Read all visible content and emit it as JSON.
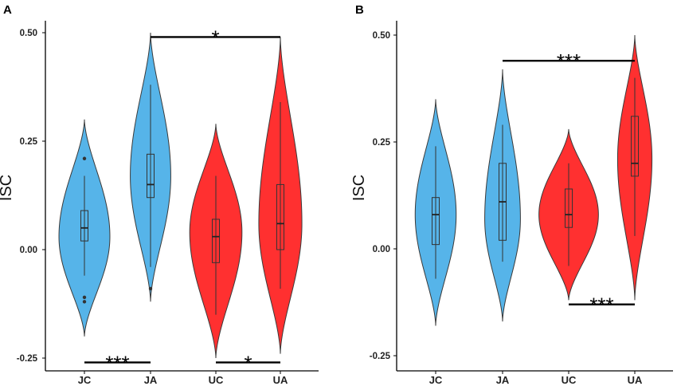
{
  "colors": {
    "JC": "#56b4e9",
    "JA": "#56b4e9",
    "UC": "#ff3030",
    "UA": "#ff3030",
    "outline": "#3a3a3a",
    "bracket": "#000000"
  },
  "chart_data": [
    {
      "type": "violin",
      "panel_label": "A",
      "ylabel": "ISC",
      "categories": [
        "JC",
        "JA",
        "UC",
        "UA"
      ],
      "yticks": [
        -0.25,
        0.0,
        0.25,
        0.5
      ],
      "ytick_labels": [
        "-0.25",
        "0.00",
        "0.25",
        "0.50"
      ],
      "ylim": [
        -0.28,
        0.54
      ],
      "violins": [
        {
          "category": "JC",
          "min": -0.2,
          "max": 0.3,
          "mode": 0.03,
          "max_width": 0.78,
          "q1": 0.02,
          "median": 0.05,
          "q3": 0.09,
          "whisker_low": -0.06,
          "whisker_high": 0.17,
          "outliers": [
            0.21,
            -0.11,
            -0.12
          ]
        },
        {
          "category": "JA",
          "min": -0.12,
          "max": 0.5,
          "mode": 0.17,
          "max_width": 0.62,
          "q1": 0.12,
          "median": 0.15,
          "q3": 0.22,
          "whisker_low": -0.04,
          "whisker_high": 0.38,
          "outliers": [
            -0.09
          ]
        },
        {
          "category": "UC",
          "min": -0.25,
          "max": 0.29,
          "mode": 0.04,
          "max_width": 0.8,
          "q1": -0.03,
          "median": 0.03,
          "q3": 0.07,
          "whisker_low": -0.15,
          "whisker_high": 0.17,
          "outliers": []
        },
        {
          "category": "UA",
          "min": -0.24,
          "max": 0.49,
          "mode": 0.06,
          "max_width": 0.66,
          "q1": 0.0,
          "median": 0.06,
          "q3": 0.15,
          "whisker_low": -0.09,
          "whisker_high": 0.34,
          "outliers": []
        }
      ],
      "significance": [
        {
          "groups": [
            "JA",
            "UA"
          ],
          "label": "*",
          "y": 0.49
        },
        {
          "groups": [
            "JC",
            "JA"
          ],
          "label": "***",
          "y": -0.26
        },
        {
          "groups": [
            "UC",
            "UA"
          ],
          "label": "*",
          "y": -0.26
        }
      ]
    },
    {
      "type": "violin",
      "panel_label": "B",
      "ylabel": "ISC",
      "categories": [
        "JC",
        "JA",
        "UC",
        "UA"
      ],
      "yticks": [
        -0.25,
        0.0,
        0.25,
        0.5
      ],
      "ytick_labels": [
        "-0.25",
        "0.00",
        "0.25",
        "0.50"
      ],
      "ylim": [
        -0.28,
        0.54
      ],
      "violins": [
        {
          "category": "JC",
          "min": -0.18,
          "max": 0.35,
          "mode": 0.08,
          "max_width": 0.62,
          "q1": 0.01,
          "median": 0.08,
          "q3": 0.12,
          "whisker_low": -0.07,
          "whisker_high": 0.24,
          "outliers": []
        },
        {
          "category": "JA",
          "min": -0.17,
          "max": 0.42,
          "mode": 0.07,
          "max_width": 0.54,
          "q1": 0.02,
          "median": 0.11,
          "q3": 0.2,
          "whisker_low": -0.03,
          "whisker_high": 0.29,
          "outliers": []
        },
        {
          "category": "UC",
          "min": -0.12,
          "max": 0.28,
          "mode": 0.08,
          "max_width": 0.9,
          "q1": 0.05,
          "median": 0.08,
          "q3": 0.14,
          "whisker_low": -0.04,
          "whisker_high": 0.2,
          "outliers": []
        },
        {
          "category": "UA",
          "min": -0.12,
          "max": 0.5,
          "mode": 0.21,
          "max_width": 0.52,
          "q1": 0.17,
          "median": 0.2,
          "q3": 0.31,
          "whisker_low": 0.03,
          "whisker_high": 0.4,
          "outliers": []
        }
      ],
      "significance": [
        {
          "groups": [
            "JA",
            "UA"
          ],
          "label": "***",
          "y": 0.44
        },
        {
          "groups": [
            "UC",
            "UA"
          ],
          "label": "***",
          "y": -0.13
        }
      ]
    }
  ]
}
